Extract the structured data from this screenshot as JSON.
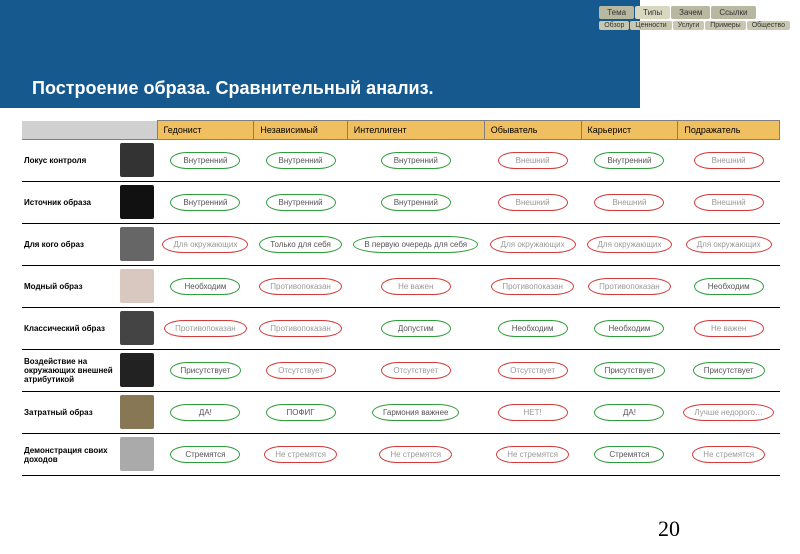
{
  "nav": {
    "row1": [
      {
        "label": "Тема",
        "active": false
      },
      {
        "label": "Типы",
        "active": true
      },
      {
        "label": "Зачем",
        "active": false
      },
      {
        "label": "Ссылки",
        "active": false
      }
    ],
    "row2": [
      {
        "label": "Обзор"
      },
      {
        "label": "Ценности"
      },
      {
        "label": "Услуги"
      },
      {
        "label": "Примеры"
      },
      {
        "label": "Общество"
      }
    ]
  },
  "title": "Построение образа. Сравнительный анализ.",
  "columns": [
    "Гедонист",
    "Независимый",
    "Интеллигент",
    "Обыватель",
    "Карьерист",
    "Подражатель"
  ],
  "rows": [
    {
      "label": "Локус контроля",
      "icon": "#333",
      "cells": [
        {
          "t": "Внутренний",
          "c": "green"
        },
        {
          "t": "Внутренний",
          "c": "green"
        },
        {
          "t": "Внутренний",
          "c": "green"
        },
        {
          "t": "Внешний",
          "c": "red"
        },
        {
          "t": "Внутренний",
          "c": "green"
        },
        {
          "t": "Внешний",
          "c": "red"
        }
      ]
    },
    {
      "label": "Источник образа",
      "icon": "#111",
      "cells": [
        {
          "t": "Внутренний",
          "c": "green"
        },
        {
          "t": "Внутренний",
          "c": "green"
        },
        {
          "t": "Внутренний",
          "c": "green"
        },
        {
          "t": "Внешний",
          "c": "red"
        },
        {
          "t": "Внешний",
          "c": "red"
        },
        {
          "t": "Внешний",
          "c": "red"
        }
      ]
    },
    {
      "label": "Для кого образ",
      "icon": "#666",
      "cells": [
        {
          "t": "Для окружающих",
          "c": "red"
        },
        {
          "t": "Только для себя",
          "c": "green"
        },
        {
          "t": "В первую очередь для себя",
          "c": "green"
        },
        {
          "t": "Для окружающих",
          "c": "red"
        },
        {
          "t": "Для окружающих",
          "c": "red"
        },
        {
          "t": "Для окружающих",
          "c": "red"
        }
      ]
    },
    {
      "label": "Модный образ",
      "icon": "#d8c8c0",
      "cells": [
        {
          "t": "Необходим",
          "c": "green"
        },
        {
          "t": "Противопоказан",
          "c": "red"
        },
        {
          "t": "Не важен",
          "c": "red"
        },
        {
          "t": "Противопоказан",
          "c": "red"
        },
        {
          "t": "Противопоказан",
          "c": "red"
        },
        {
          "t": "Необходим",
          "c": "green"
        }
      ]
    },
    {
      "label": "Классический образ",
      "icon": "#444",
      "cells": [
        {
          "t": "Противопоказан",
          "c": "red"
        },
        {
          "t": "Противопоказан",
          "c": "red"
        },
        {
          "t": "Допустим",
          "c": "green"
        },
        {
          "t": "Необходим",
          "c": "green"
        },
        {
          "t": "Необходим",
          "c": "green"
        },
        {
          "t": "Не важен",
          "c": "red"
        }
      ]
    },
    {
      "label": "Воздействие на окружающих внешней атрибутикой",
      "icon": "#222",
      "cells": [
        {
          "t": "Присутствует",
          "c": "green"
        },
        {
          "t": "Отсутствует",
          "c": "red"
        },
        {
          "t": "Отсутствует",
          "c": "red"
        },
        {
          "t": "Отсутствует",
          "c": "red"
        },
        {
          "t": "Присутствует",
          "c": "green"
        },
        {
          "t": "Присутствует",
          "c": "green"
        }
      ]
    },
    {
      "label": "Затратный образ",
      "icon": "#887755",
      "cells": [
        {
          "t": "ДА!",
          "c": "green"
        },
        {
          "t": "ПОФИГ",
          "c": "green"
        },
        {
          "t": "Гармония важнее",
          "c": "green"
        },
        {
          "t": "НЕТ!",
          "c": "red"
        },
        {
          "t": "ДА!",
          "c": "green"
        },
        {
          "t": "Лучше недорого…",
          "c": "red"
        }
      ]
    },
    {
      "label": "Демонстрация своих доходов",
      "icon": "#aaa",
      "cells": [
        {
          "t": "Стремятся",
          "c": "green"
        },
        {
          "t": "Не стремятся",
          "c": "red"
        },
        {
          "t": "Не стремятся",
          "c": "red"
        },
        {
          "t": "Не стремятся",
          "c": "red"
        },
        {
          "t": "Стремятся",
          "c": "green"
        },
        {
          "t": "Не стремятся",
          "c": "red"
        }
      ]
    }
  ],
  "page_number": "20",
  "colors": {
    "header_bg": "#15598f",
    "th_bg": "#f0c060",
    "green": "#2e9d3a",
    "red": "#d43a3a"
  }
}
